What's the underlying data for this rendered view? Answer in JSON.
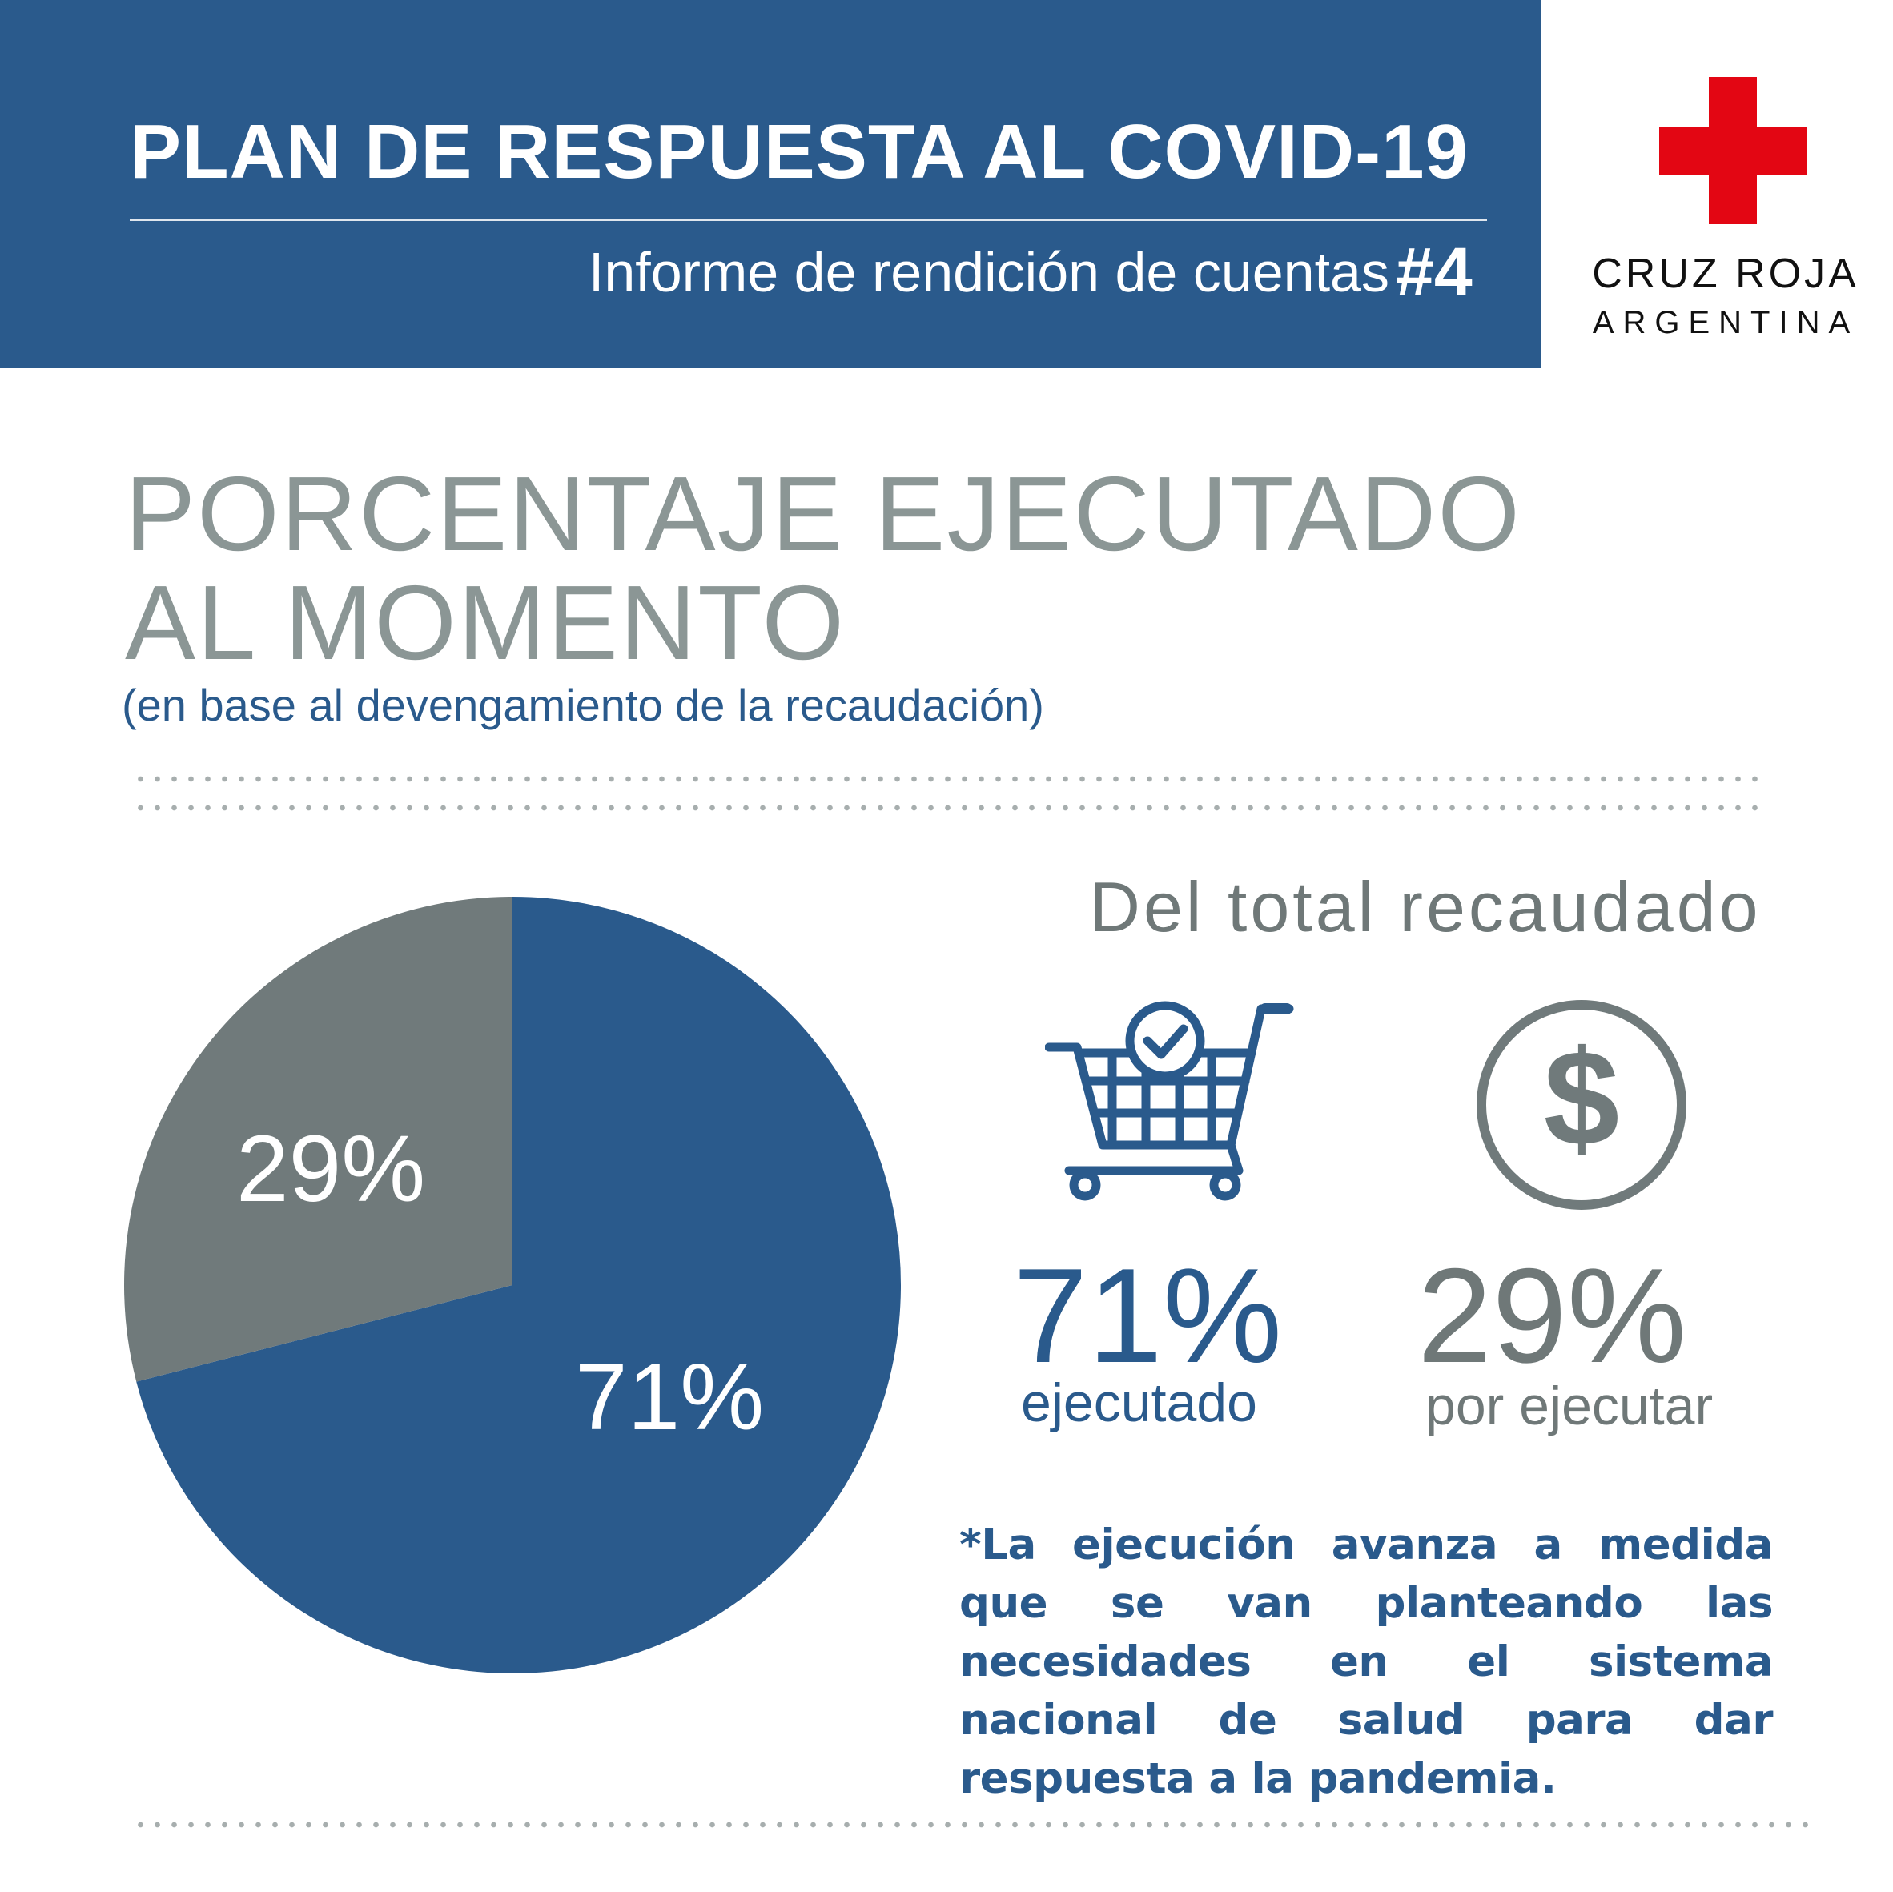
{
  "header": {
    "title": "PLAN DE RESPUESTA AL COVID-19",
    "subtitle": "Informe de rendición de cuentas",
    "report_number": "#4",
    "band_color": "#2a5a8c"
  },
  "logo": {
    "icon": "red-cross-icon",
    "cross_color": "#e30613",
    "name": "CRUZ ROJA",
    "country": "ARGENTINA"
  },
  "section": {
    "title_line1": "PORCENTAJE EJECUTADO",
    "title_line2": "AL MOMENTO",
    "subtitle": "(en base al devengamiento de la recaudación)"
  },
  "summary": {
    "heading": "Del total recaudado",
    "executed": {
      "icon": "shopping-cart-check-icon",
      "value": "71%",
      "label": "ejecutado",
      "color": "#2a5a8c"
    },
    "pending": {
      "icon": "dollar-coin-icon",
      "value": "29%",
      "label": "por ejecutar",
      "color": "#6f7878"
    }
  },
  "footnote": "*La ejecución avanza a medida que se van planteando las necesidades en el sistema nacional de salud para dar respuesta a la pandemia.",
  "chart_data": {
    "type": "pie",
    "slices": [
      {
        "label": "71%",
        "value": 71,
        "color": "#2a5a8c"
      },
      {
        "label": "29%",
        "value": 29,
        "color": "#707a7b"
      }
    ],
    "start_angle_deg": 0,
    "direction": "clockwise"
  }
}
